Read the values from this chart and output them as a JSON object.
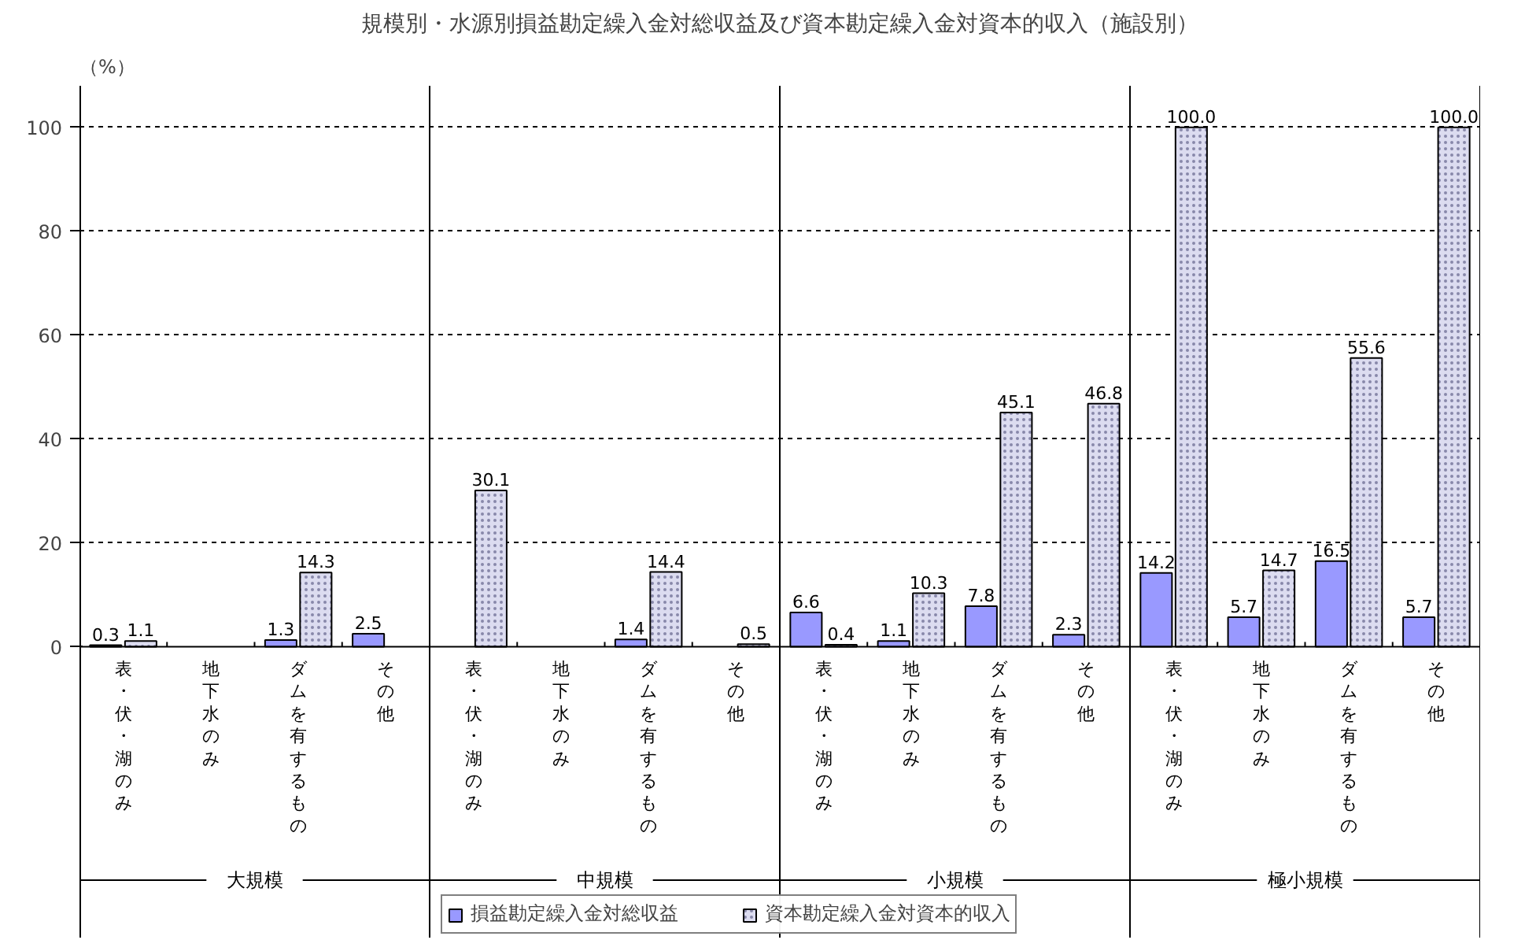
{
  "chart_data": {
    "type": "bar",
    "title": "規模別・水源別損益勘定繰入金対総収益及び資本勘定繰入金対資本的収入（施設別）",
    "ylabel": "（%）",
    "categories": [
      "表・伏・湖のみ",
      "地下水のみ",
      "ダムを有するもの",
      "その他",
      "表・伏・湖のみ",
      "地下水のみ",
      "ダムを有するもの",
      "その他",
      "表・伏・湖のみ",
      "地下水のみ",
      "ダムを有するもの",
      "その他",
      "表・伏・湖のみ",
      "地下水のみ",
      "ダムを有するもの",
      "その他"
    ],
    "series": [
      {
        "name": "損益勘定繰入金対総収益",
        "color": "#9999ff",
        "values": [
          0.3,
          null,
          1.3,
          2.5,
          null,
          null,
          1.4,
          null,
          6.6,
          1.1,
          7.8,
          2.3,
          14.2,
          5.7,
          16.5,
          5.7
        ],
        "value_labels": [
          "0.3",
          null,
          "1.3",
          "2.5",
          null,
          null,
          "1.4",
          null,
          "6.6",
          "1.1",
          "7.8",
          "2.3",
          "14.2",
          "5.7",
          "16.5",
          "5.7"
        ]
      },
      {
        "name": "資本勘定繰入金対資本的収入",
        "color": "#dcdcf0",
        "values": [
          1.1,
          null,
          14.3,
          null,
          30.1,
          null,
          14.4,
          0.5,
          0.4,
          10.3,
          45.1,
          46.8,
          100.0,
          14.7,
          55.6,
          100.0
        ],
        "value_labels": [
          "1.1",
          null,
          "14.3",
          null,
          "30.1",
          null,
          "14.4",
          "0.5",
          "0.4",
          "10.3",
          "45.1",
          "46.8",
          "100.0",
          "14.7",
          "55.6",
          "100.0"
        ]
      }
    ],
    "annotations": [
      "大規模",
      "中規模",
      "小規模",
      "極小規模"
    ],
    "ylim": [
      0,
      100
    ],
    "yticks": [
      0,
      20,
      40,
      60,
      80,
      100
    ],
    "grid": "y",
    "legend": "bottom"
  }
}
